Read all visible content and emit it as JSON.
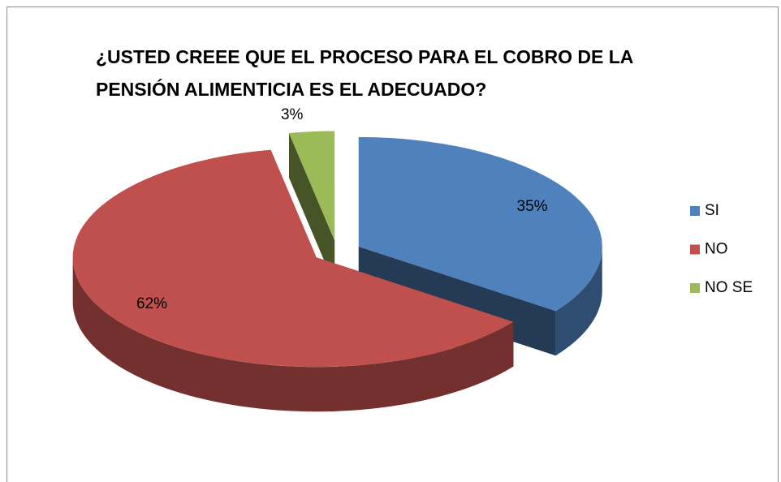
{
  "chart_data": {
    "type": "pie3d",
    "title": "¿USTED CREEE QUE EL PROCESO  PARA EL COBRO DE LA PENSIÓN ALIMENTICIA ES EL ADECUADO?",
    "categories": [
      "SI",
      "NO",
      "NO SE"
    ],
    "values": [
      35,
      62,
      3
    ],
    "value_labels": [
      "35%",
      "62%",
      "3%"
    ],
    "colors": [
      "#4f81bd",
      "#c0504d",
      "#9bbb59"
    ],
    "legend": "right"
  }
}
